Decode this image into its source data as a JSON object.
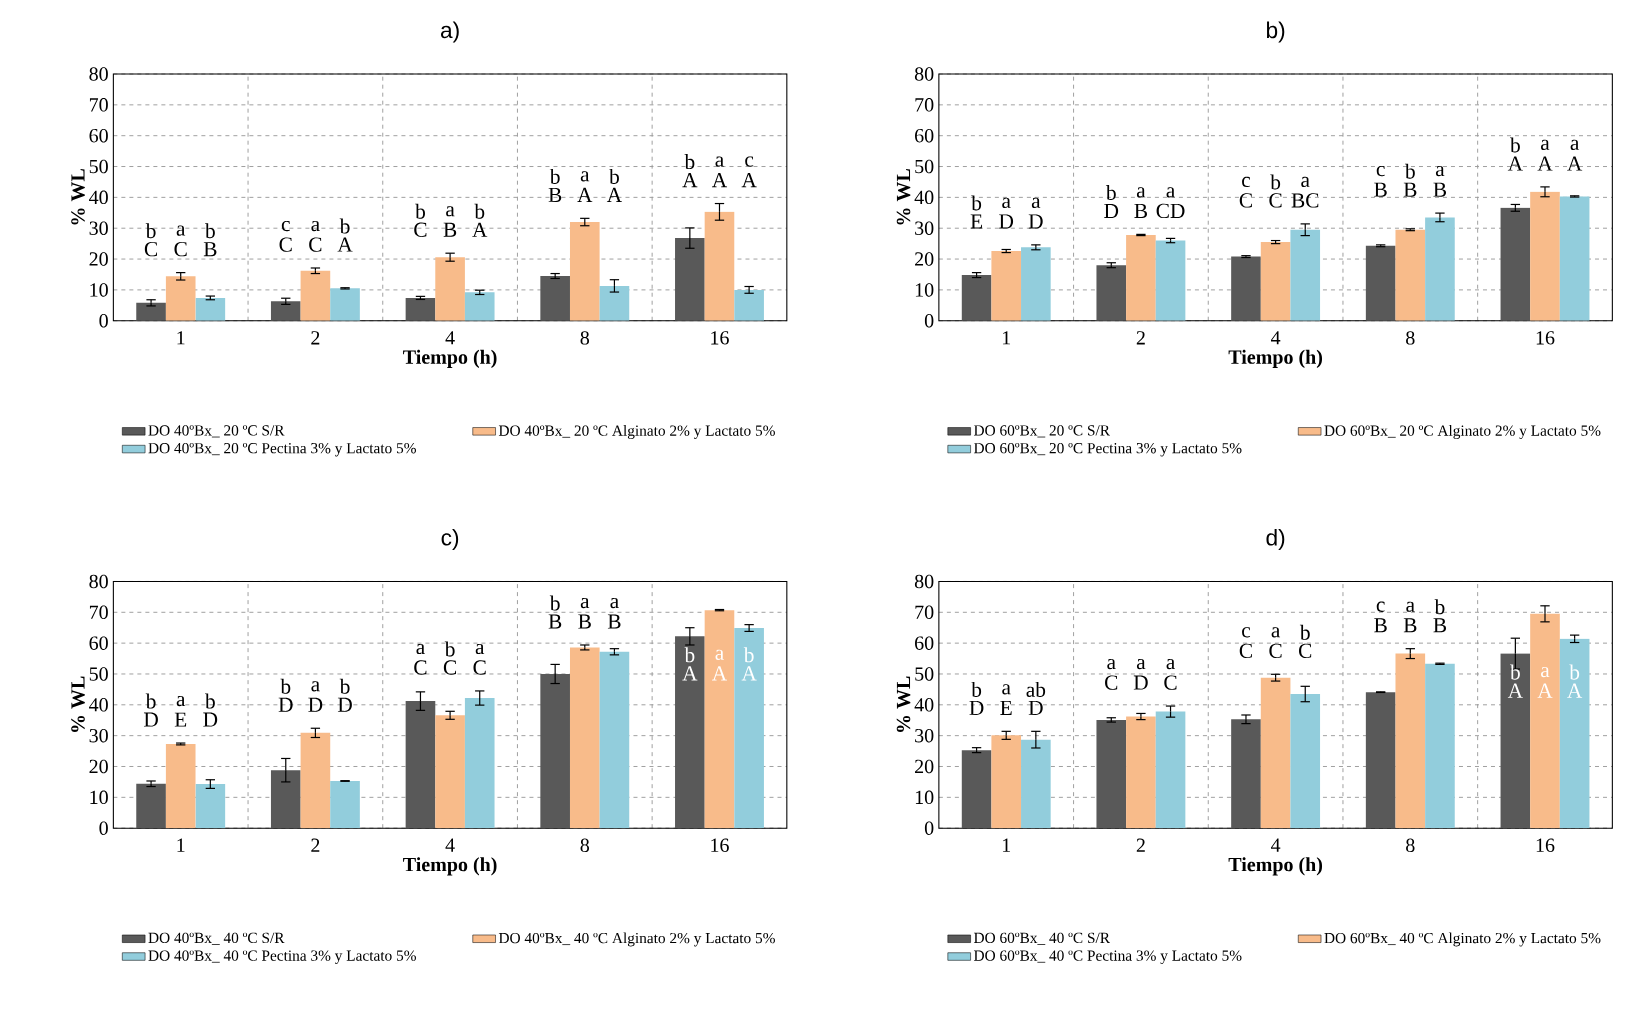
{
  "chart_data": [
    {
      "type": "bar",
      "title": "a)",
      "xlabel": "Tiempo (h)",
      "ylabel": "% WL",
      "categories": [
        "1",
        "2",
        "4",
        "8",
        "16"
      ],
      "ylim": [
        0,
        80
      ],
      "yticks": [
        0,
        10,
        20,
        30,
        40,
        50,
        60,
        70,
        80
      ],
      "grid": true,
      "legend": "bottom",
      "series": [
        {
          "name": "DO 40ºBx_ 20 ºC S/R",
          "color": "#595959",
          "values": [
            5.8,
            6.3,
            7.4,
            14.5,
            26.8
          ],
          "errors": [
            1.0,
            1.0,
            0.5,
            0.8,
            3.3
          ]
        },
        {
          "name": "DO 40ºBx_ 20 ºC Alginato 2% y Lactato 5%",
          "color": "#f8bb8a",
          "values": [
            14.4,
            16.2,
            20.6,
            32.0,
            35.3
          ],
          "errors": [
            1.2,
            0.9,
            1.3,
            1.2,
            2.7
          ]
        },
        {
          "name": "DO 40ºBx_ 20 ºC Pectina 3% y Lactato 5%",
          "color": "#92cddc",
          "values": [
            7.4,
            10.5,
            9.2,
            11.3,
            10.0
          ],
          "errors": [
            0.6,
            0.2,
            0.7,
            2.0,
            1.1
          ]
        }
      ],
      "annotations": [
        "b",
        "a",
        "b",
        "C",
        "C",
        "B",
        "c",
        "a",
        "b",
        "C",
        "C",
        "A",
        "b",
        "a",
        "b",
        "C",
        "B",
        "A",
        "b",
        "a",
        "b",
        "B",
        "A",
        "A",
        "b",
        "a",
        "c",
        "A",
        "A",
        "A"
      ]
    },
    {
      "type": "bar",
      "title": "b)",
      "xlabel": "Tiempo (h)",
      "ylabel": "% WL",
      "categories": [
        "1",
        "2",
        "4",
        "8",
        "16"
      ],
      "ylim": [
        0,
        80
      ],
      "yticks": [
        0,
        10,
        20,
        30,
        40,
        50,
        60,
        70,
        80
      ],
      "grid": true,
      "legend": "bottom",
      "series": [
        {
          "name": "DO 60ºBx_ 20 ºC S/R",
          "color": "#595959",
          "values": [
            14.8,
            18.0,
            20.8,
            24.3,
            36.6
          ],
          "errors": [
            0.8,
            0.8,
            0.3,
            0.3,
            1.1
          ]
        },
        {
          "name": "DO 60ºBx_ 20 ºC Alginato 2% y Lactato 5%",
          "color": "#f8bb8a",
          "values": [
            22.6,
            27.8,
            25.5,
            29.5,
            41.8
          ],
          "errors": [
            0.5,
            0.2,
            0.5,
            0.3,
            1.6
          ]
        },
        {
          "name": "DO 60ºBx_ 20 ºC Pectina 3% y Lactato 5%",
          "color": "#92cddc",
          "values": [
            23.8,
            26.0,
            29.5,
            33.5,
            40.3
          ],
          "errors": [
            0.8,
            0.7,
            1.9,
            1.4,
            0.2
          ]
        }
      ],
      "annotations": [
        "b",
        "a",
        "a",
        "E",
        "D",
        "D",
        "b",
        "a",
        "a",
        "D",
        "B",
        "CD",
        "c",
        "b",
        "a",
        "C",
        "C",
        "BC",
        "c",
        "b",
        "a",
        "B",
        "B",
        "B",
        "b",
        "a",
        "a",
        "A",
        "A",
        "A"
      ]
    },
    {
      "type": "bar",
      "title": "c)",
      "xlabel": "Tiempo (h)",
      "ylabel": "% WL",
      "categories": [
        "1",
        "2",
        "4",
        "8",
        "16"
      ],
      "ylim": [
        0,
        80
      ],
      "yticks": [
        0,
        10,
        20,
        30,
        40,
        50,
        60,
        70,
        80
      ],
      "grid": true,
      "legend": "bottom",
      "series": [
        {
          "name": "DO 40ºBx_ 40 ºC S/R",
          "color": "#595959",
          "values": [
            14.4,
            18.8,
            41.2,
            50.0,
            62.2
          ],
          "errors": [
            0.9,
            3.8,
            3.0,
            3.1,
            2.8
          ]
        },
        {
          "name": "DO 40ºBx_ 40 ºC Alginato 2% y Lactato 5%",
          "color": "#f8bb8a",
          "values": [
            27.3,
            30.9,
            36.6,
            58.6,
            70.7
          ],
          "errors": [
            0.3,
            1.5,
            1.3,
            0.8,
            0.2
          ]
        },
        {
          "name": "DO 40ºBx_ 40 ºC Pectina 3% y Lactato 5%",
          "color": "#92cddc",
          "values": [
            14.3,
            15.3,
            42.2,
            57.2,
            64.9
          ],
          "errors": [
            1.4,
            0.1,
            2.3,
            1.0,
            1.1
          ]
        }
      ],
      "annotations": [
        "b",
        "a",
        "b",
        "D",
        "E",
        "D",
        "b",
        "a",
        "b",
        "D",
        "D",
        "D",
        "a",
        "b",
        "a",
        "C",
        "C",
        "C",
        "b",
        "a",
        "a",
        "B",
        "B",
        "B",
        "b",
        "a",
        "b",
        "A",
        "A",
        "A"
      ]
    },
    {
      "type": "bar",
      "title": "d)",
      "xlabel": "Tiempo (h)",
      "ylabel": "% WL",
      "categories": [
        "1",
        "2",
        "4",
        "8",
        "16"
      ],
      "ylim": [
        0,
        80
      ],
      "yticks": [
        0,
        10,
        20,
        30,
        40,
        50,
        60,
        70,
        80
      ],
      "grid": true,
      "legend": "bottom",
      "series": [
        {
          "name": "DO 60ºBx_ 40 ºC S/R",
          "color": "#595959",
          "values": [
            25.3,
            35.1,
            35.3,
            44.1,
            56.6
          ],
          "errors": [
            0.8,
            0.7,
            1.4,
            0.1,
            5.0
          ]
        },
        {
          "name": "DO 60ºBx_ 40 ºC Alginato 2% y Lactato 5%",
          "color": "#f8bb8a",
          "values": [
            30.1,
            36.2,
            48.8,
            56.6,
            69.5
          ],
          "errors": [
            1.3,
            1.0,
            1.1,
            1.6,
            2.6
          ]
        },
        {
          "name": "DO 60ºBx_ 40 ºC Pectina 3% y Lactato 5%",
          "color": "#92cddc",
          "values": [
            28.7,
            37.8,
            43.5,
            53.3,
            61.4
          ],
          "errors": [
            2.7,
            1.8,
            2.5,
            0.2,
            1.2
          ]
        }
      ],
      "annotations": [
        "b",
        "a",
        "ab",
        "D",
        "E",
        "D",
        "a",
        "a",
        "a",
        "C",
        "D",
        "C",
        "c",
        "a",
        "b",
        "C",
        "C",
        "C",
        "c",
        "a",
        "b",
        "B",
        "B",
        "B",
        "b",
        "a",
        "b",
        "A",
        "A",
        "A"
      ]
    }
  ]
}
